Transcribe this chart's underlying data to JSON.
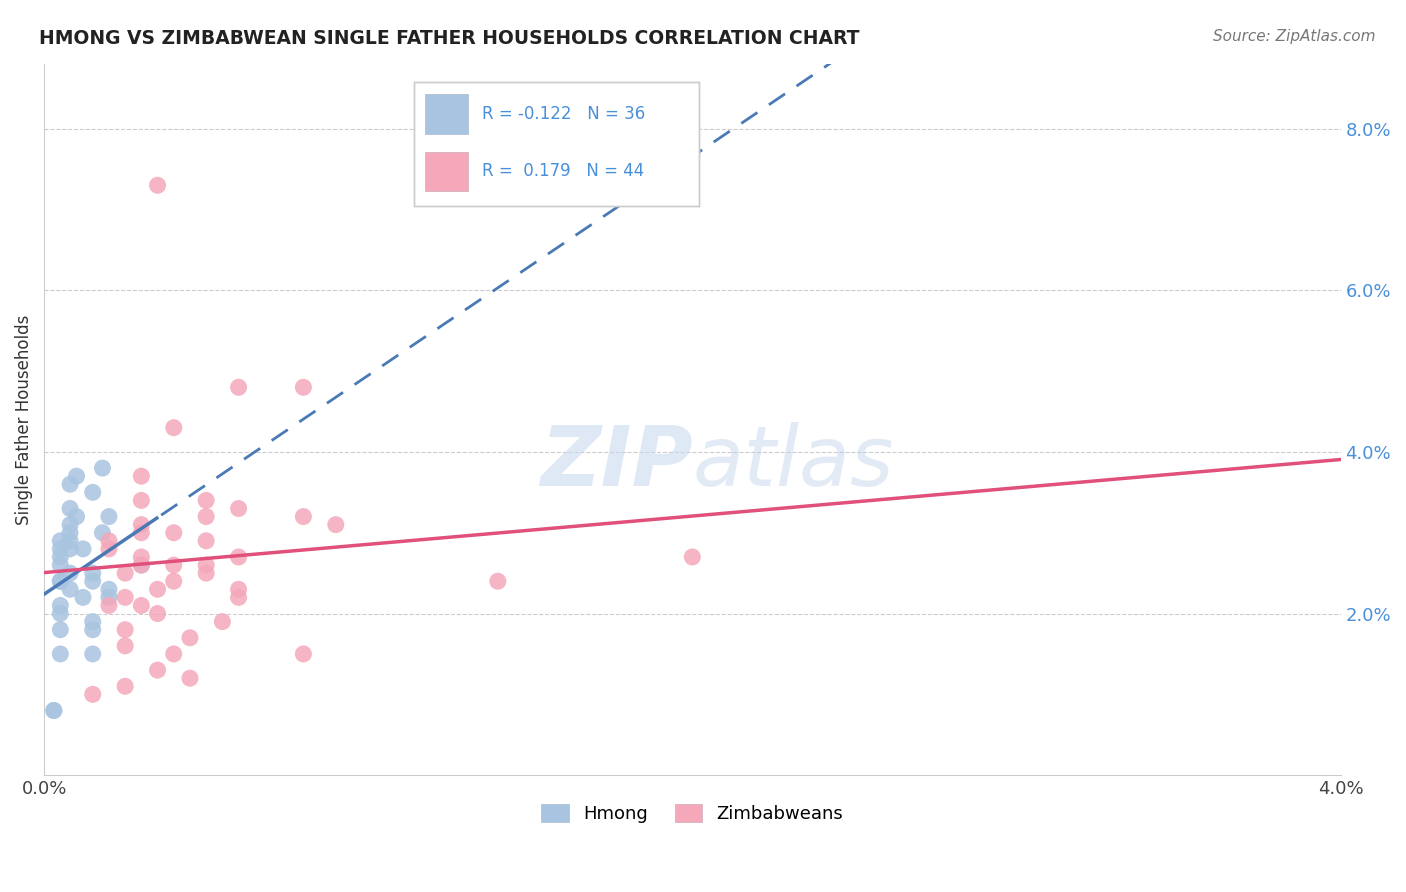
{
  "title": "HMONG VS ZIMBABWEAN SINGLE FATHER HOUSEHOLDS CORRELATION CHART",
  "source": "Source: ZipAtlas.com",
  "ylabel": "Single Father Households",
  "xlim": [
    0.0,
    0.04
  ],
  "ylim": [
    0.0,
    0.088
  ],
  "yticks": [
    0.02,
    0.04,
    0.06,
    0.08
  ],
  "ytick_labels": [
    "2.0%",
    "4.0%",
    "6.0%",
    "8.0%"
  ],
  "hmong_R": -0.122,
  "hmong_N": 36,
  "zimbabwean_R": 0.179,
  "zimbabwean_N": 44,
  "hmong_color": "#a8c4e0",
  "hmong_line_color": "#4a7ab5",
  "zimbabwean_color": "#f4a8ba",
  "zimbabwean_line_color": "#e0507a",
  "legend_R_color": "#4a90d9",
  "hmong_x": [
    0.0018,
    0.001,
    0.0008,
    0.0015,
    0.0008,
    0.001,
    0.002,
    0.0008,
    0.0008,
    0.0018,
    0.0005,
    0.0008,
    0.0005,
    0.0008,
    0.0012,
    0.0005,
    0.0005,
    0.003,
    0.0008,
    0.0015,
    0.0005,
    0.0015,
    0.0005,
    0.002,
    0.0008,
    0.0012,
    0.002,
    0.0005,
    0.0005,
    0.0015,
    0.0005,
    0.0015,
    0.0005,
    0.0015,
    0.0003,
    0.0003
  ],
  "hmong_y": [
    0.038,
    0.037,
    0.036,
    0.035,
    0.033,
    0.032,
    0.032,
    0.031,
    0.03,
    0.03,
    0.029,
    0.029,
    0.028,
    0.028,
    0.028,
    0.027,
    0.026,
    0.026,
    0.025,
    0.025,
    0.024,
    0.024,
    0.024,
    0.023,
    0.023,
    0.022,
    0.022,
    0.021,
    0.02,
    0.019,
    0.018,
    0.018,
    0.015,
    0.015,
    0.008,
    0.008
  ],
  "zimbabwean_x": [
    0.0035,
    0.006,
    0.008,
    0.004,
    0.003,
    0.005,
    0.003,
    0.006,
    0.005,
    0.008,
    0.003,
    0.009,
    0.003,
    0.004,
    0.005,
    0.002,
    0.002,
    0.006,
    0.003,
    0.004,
    0.003,
    0.005,
    0.005,
    0.0025,
    0.004,
    0.014,
    0.006,
    0.0035,
    0.0025,
    0.006,
    0.002,
    0.003,
    0.0035,
    0.0055,
    0.0025,
    0.0045,
    0.0025,
    0.004,
    0.008,
    0.02,
    0.0035,
    0.0045,
    0.0025,
    0.0015
  ],
  "zimbabwean_y": [
    0.073,
    0.048,
    0.048,
    0.043,
    0.037,
    0.034,
    0.034,
    0.033,
    0.032,
    0.032,
    0.031,
    0.031,
    0.03,
    0.03,
    0.029,
    0.029,
    0.028,
    0.027,
    0.027,
    0.026,
    0.026,
    0.026,
    0.025,
    0.025,
    0.024,
    0.024,
    0.023,
    0.023,
    0.022,
    0.022,
    0.021,
    0.021,
    0.02,
    0.019,
    0.018,
    0.017,
    0.016,
    0.015,
    0.015,
    0.027,
    0.013,
    0.012,
    0.011,
    0.01
  ]
}
